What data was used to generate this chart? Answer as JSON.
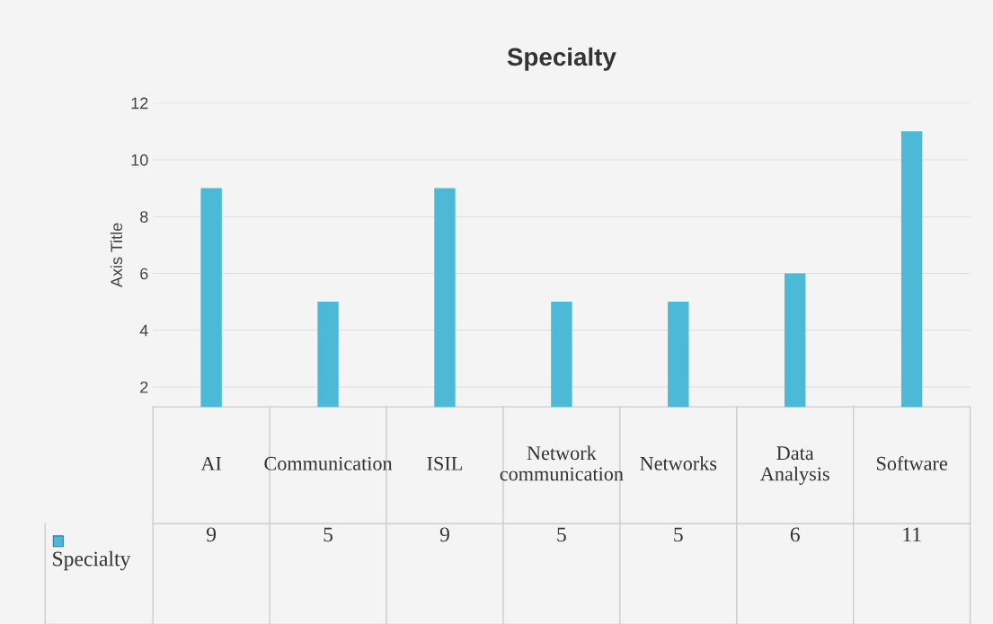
{
  "chart_data": {
    "type": "bar",
    "title": "Specialty",
    "ylabel": "Axis Title",
    "categories": [
      "AI",
      "Communication",
      "ISIL",
      "Network communication",
      "Networks",
      "Data Analysis",
      "Software"
    ],
    "series": [
      {
        "name": "Specialty",
        "color": "#4cbad6",
        "values": [
          9,
          5,
          9,
          5,
          5,
          6,
          11
        ]
      }
    ],
    "ylim": [
      1.3,
      12
    ],
    "yticks": [
      2,
      4,
      6,
      8,
      10,
      12
    ],
    "grid": "y",
    "data_labels": true,
    "legend": "bottom"
  }
}
